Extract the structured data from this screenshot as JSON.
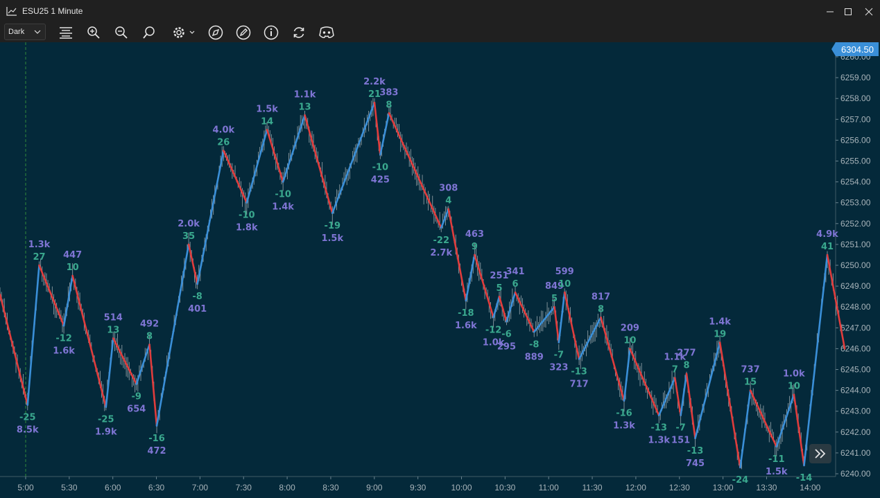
{
  "window": {
    "title": "ESU25 1 Minute"
  },
  "toolbar": {
    "theme_value": "Dark",
    "icons": [
      "format-icon",
      "zoom-in-icon",
      "zoom-out-icon",
      "search-icon",
      "settings-icon",
      "compass-icon",
      "pen-icon",
      "info-icon",
      "refresh-icon",
      "discord-icon"
    ]
  },
  "colors": {
    "background": "#04293a",
    "up_leg": "#3a8fd8",
    "down_leg": "#e03c3c",
    "delta_label": "#3aa88e",
    "volume_label": "#7f75d4",
    "price_badge": "#3a8fd8"
  },
  "chart_data": {
    "type": "line",
    "title": "",
    "ylim": [
      6239.8,
      6260.3
    ],
    "last_price": "6304.50",
    "x_ticks": [
      "5:00",
      "5:30",
      "6:00",
      "6:30",
      "7:00",
      "7:30",
      "8:00",
      "8:30",
      "9:00",
      "9:30",
      "10:00",
      "10:30",
      "11:00",
      "11:30",
      "12:00",
      "12:30",
      "13:00",
      "13:30",
      "14:00"
    ],
    "y_ticks": [
      "6260.00",
      "6259.00",
      "6258.00",
      "6257.00",
      "6256.00",
      "6255.00",
      "6254.00",
      "6253.00",
      "6252.00",
      "6251.00",
      "6250.00",
      "6249.00",
      "6248.00",
      "6247.00",
      "6246.00",
      "6245.00",
      "6244.00",
      "6243.00",
      "6242.00",
      "6241.00",
      "6240.00"
    ],
    "zigzag": [
      {
        "t": 0,
        "p": 6248.6
      },
      {
        "t": 19,
        "p": 6243.3,
        "labels": [
          "-25",
          "8.5k"
        ]
      },
      {
        "t": 27,
        "p": 6250.0,
        "labels": [
          "1.3k",
          "27"
        ]
      },
      {
        "t": 44,
        "p": 6247.1,
        "labels": [
          "-12",
          "1.6k"
        ]
      },
      {
        "t": 50,
        "p": 6249.5,
        "labels": [
          "447",
          "10"
        ]
      },
      {
        "t": 73,
        "p": 6243.2,
        "labels": [
          "-25",
          "1.9k"
        ]
      },
      {
        "t": 78,
        "p": 6246.5,
        "labels": [
          "514",
          "13"
        ]
      },
      {
        "t": 94,
        "p": 6244.3,
        "labels": [
          "-9",
          "654"
        ]
      },
      {
        "t": 103,
        "p": 6246.2,
        "labels": [
          "492",
          "8"
        ]
      },
      {
        "t": 108,
        "p": 6242.3,
        "labels": [
          "-16",
          "472"
        ]
      },
      {
        "t": 130,
        "p": 6251.0,
        "labels": [
          "2.0k",
          "35"
        ]
      },
      {
        "t": 136,
        "p": 6249.1,
        "labels": [
          "-8",
          "401"
        ]
      },
      {
        "t": 154,
        "p": 6255.5,
        "labels": [
          "4.0k",
          "26"
        ]
      },
      {
        "t": 170,
        "p": 6253.0,
        "labels": [
          "-10",
          "1.8k"
        ]
      },
      {
        "t": 184,
        "p": 6256.5,
        "labels": [
          "1.5k",
          "14"
        ]
      },
      {
        "t": 195,
        "p": 6254.0,
        "labels": [
          "-10",
          "1.4k"
        ]
      },
      {
        "t": 210,
        "p": 6257.2,
        "labels": [
          "1.1k",
          "13"
        ]
      },
      {
        "t": 229,
        "p": 6252.5,
        "labels": [
          "-19",
          "1.5k"
        ]
      },
      {
        "t": 258,
        "p": 6257.8,
        "labels": [
          "2.2k",
          "21"
        ]
      },
      {
        "t": 262,
        "p": 6255.3,
        "labels": [
          "-10",
          "425"
        ]
      },
      {
        "t": 268,
        "p": 6257.3,
        "labels": [
          "383",
          "8"
        ]
      },
      {
        "t": 304,
        "p": 6251.8,
        "labels": [
          "-22",
          "2.7k"
        ]
      },
      {
        "t": 309,
        "p": 6252.7,
        "labels": [
          "308",
          "4"
        ]
      },
      {
        "t": 321,
        "p": 6248.3,
        "labels": [
          "-18",
          "1.6k"
        ]
      },
      {
        "t": 327,
        "p": 6250.5,
        "labels": [
          "463",
          "9"
        ]
      },
      {
        "t": 340,
        "p": 6247.5,
        "labels": [
          "-12",
          "1.0k"
        ]
      },
      {
        "t": 344,
        "p": 6248.5,
        "labels": [
          "251",
          "5"
        ]
      },
      {
        "t": 349,
        "p": 6247.3,
        "labels": [
          "-6",
          "295"
        ]
      },
      {
        "t": 355,
        "p": 6248.7,
        "labels": [
          "341",
          "6"
        ]
      },
      {
        "t": 368,
        "p": 6246.8,
        "labels": [
          "-8",
          "889"
        ]
      },
      {
        "t": 382,
        "p": 6248.0,
        "labels": [
          "849",
          "5"
        ]
      },
      {
        "t": 385,
        "p": 6246.3,
        "labels": [
          "-7",
          "323"
        ]
      },
      {
        "t": 389,
        "p": 6248.7,
        "labels": [
          "599",
          "10"
        ]
      },
      {
        "t": 399,
        "p": 6245.5,
        "labels": [
          "-13",
          "717"
        ]
      },
      {
        "t": 414,
        "p": 6247.5,
        "labels": [
          "817",
          "8"
        ]
      },
      {
        "t": 430,
        "p": 6243.5,
        "labels": [
          "-16",
          "1.3k"
        ]
      },
      {
        "t": 434,
        "p": 6246.0,
        "labels": [
          "209",
          "10"
        ]
      },
      {
        "t": 454,
        "p": 6242.8,
        "labels": [
          "-13",
          "1.3k"
        ]
      },
      {
        "t": 465,
        "p": 6244.6,
        "labels": [
          "1.1k",
          "7"
        ]
      },
      {
        "t": 469,
        "p": 6242.8,
        "labels": [
          "-7",
          "151"
        ]
      },
      {
        "t": 473,
        "p": 6244.8,
        "labels": [
          "277",
          "8"
        ]
      },
      {
        "t": 479,
        "p": 6241.7,
        "labels": [
          "-13",
          "745"
        ]
      },
      {
        "t": 496,
        "p": 6246.3,
        "labels": [
          "1.4k",
          "19"
        ]
      },
      {
        "t": 510,
        "p": 6240.3,
        "labels": [
          "-24",
          ""
        ]
      },
      {
        "t": 517,
        "p": 6244.0,
        "labels": [
          "737",
          "15"
        ]
      },
      {
        "t": 535,
        "p": 6241.3,
        "labels": [
          "-11",
          "1.5k"
        ]
      },
      {
        "t": 547,
        "p": 6243.8,
        "labels": [
          "1.0k",
          "10"
        ]
      },
      {
        "t": 554,
        "p": 6240.4,
        "labels": [
          "-14",
          ""
        ]
      },
      {
        "t": 570,
        "p": 6250.5,
        "labels": [
          "4.9k",
          "41"
        ]
      },
      {
        "t": 582,
        "p": 6246.0
      }
    ]
  }
}
